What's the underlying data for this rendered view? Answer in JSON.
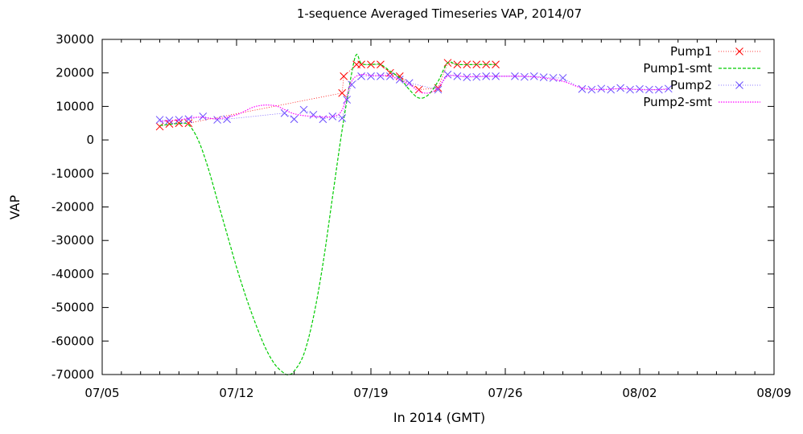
{
  "chart_data": {
    "type": "line",
    "title": "1-sequence Averaged Timeseries VAP, 2014/07",
    "xlabel": "In 2014 (GMT)",
    "ylabel": "VAP",
    "xlim": [
      "07/05",
      "08/09"
    ],
    "ylim": [
      -70000,
      30000
    ],
    "x_ticks": [
      "07/05",
      "07/12",
      "07/19",
      "07/26",
      "08/02",
      "08/09"
    ],
    "y_ticks": [
      "30000",
      "20000",
      "10000",
      "0",
      "-10000",
      "-20000",
      "-30000",
      "-40000",
      "-50000",
      "-60000",
      "-70000"
    ],
    "legend_position": "top-right",
    "grid": false,
    "series": [
      {
        "name": "Pump1",
        "color": "#ff0000",
        "style": "points-line",
        "points": [
          [
            "2014-07-08 00:00",
            4000
          ],
          [
            "2014-07-08 12:00",
            4800
          ],
          [
            "2014-07-09 00:00",
            5000
          ],
          [
            "2014-07-09 12:00",
            5000
          ],
          [
            "2014-07-17 12:00",
            14000
          ],
          [
            "2014-07-17 14:00",
            19000
          ],
          [
            "2014-07-18 06:00",
            22500
          ],
          [
            "2014-07-18 12:00",
            22500
          ],
          [
            "2014-07-19 00:00",
            22500
          ],
          [
            "2014-07-19 12:00",
            22500
          ],
          [
            "2014-07-20 00:00",
            20000
          ],
          [
            "2014-07-20 12:00",
            19000
          ],
          [
            "2014-07-21 12:00",
            15000
          ],
          [
            "2014-07-22 12:00",
            15500
          ],
          [
            "2014-07-23 00:00",
            23000
          ],
          [
            "2014-07-23 12:00",
            22500
          ],
          [
            "2014-07-24 00:00",
            22500
          ],
          [
            "2014-07-24 12:00",
            22500
          ],
          [
            "2014-07-25 00:00",
            22500
          ],
          [
            "2014-07-25 12:00",
            22500
          ]
        ]
      },
      {
        "name": "Pump1-smt",
        "color": "#00cc00",
        "style": "dashed",
        "points": [
          [
            "2014-07-08 00:00",
            4300
          ],
          [
            "2014-07-09 00:00",
            4900
          ],
          [
            "2014-07-09 12:00",
            4500
          ],
          [
            "2014-07-10 00:00",
            0
          ],
          [
            "2014-07-10 12:00",
            -8000
          ],
          [
            "2014-07-11 00:00",
            -18000
          ],
          [
            "2014-07-11 12:00",
            -28000
          ],
          [
            "2014-07-12 00:00",
            -38000
          ],
          [
            "2014-07-12 12:00",
            -47000
          ],
          [
            "2014-07-13 00:00",
            -55000
          ],
          [
            "2014-07-13 12:00",
            -62000
          ],
          [
            "2014-07-14 00:00",
            -67000
          ],
          [
            "2014-07-14 12:00",
            -69700
          ],
          [
            "2014-07-14 18:00",
            -70000
          ],
          [
            "2014-07-15 00:00",
            -69000
          ],
          [
            "2014-07-15 12:00",
            -64000
          ],
          [
            "2014-07-16 00:00",
            -53000
          ],
          [
            "2014-07-16 12:00",
            -37000
          ],
          [
            "2014-07-17 00:00",
            -17000
          ],
          [
            "2014-07-17 12:00",
            3000
          ],
          [
            "2014-07-18 00:00",
            20000
          ],
          [
            "2014-07-18 06:00",
            25500
          ],
          [
            "2014-07-18 12:00",
            22800
          ],
          [
            "2014-07-19 00:00",
            22500
          ],
          [
            "2014-07-19 12:00",
            22500
          ],
          [
            "2014-07-20 00:00",
            20500
          ],
          [
            "2014-07-20 12:00",
            18500
          ],
          [
            "2014-07-21 00:00",
            15000
          ],
          [
            "2014-07-21 12:00",
            12500
          ],
          [
            "2014-07-22 00:00",
            13500
          ],
          [
            "2014-07-22 12:00",
            17500
          ],
          [
            "2014-07-23 00:00",
            23000
          ],
          [
            "2014-07-23 12:00",
            22500
          ],
          [
            "2014-07-24 12:00",
            22500
          ],
          [
            "2014-07-25 12:00",
            22500
          ]
        ]
      },
      {
        "name": "Pump2",
        "color": "#6a4cff",
        "style": "points-line",
        "points": [
          [
            "2014-07-08 00:00",
            6000
          ],
          [
            "2014-07-08 12:00",
            5800
          ],
          [
            "2014-07-09 00:00",
            6000
          ],
          [
            "2014-07-09 12:00",
            6200
          ],
          [
            "2014-07-10 06:00",
            7000
          ],
          [
            "2014-07-11 00:00",
            6000
          ],
          [
            "2014-07-11 12:00",
            6200
          ],
          [
            "2014-07-14 12:00",
            8000
          ],
          [
            "2014-07-15 00:00",
            6200
          ],
          [
            "2014-07-15 12:00",
            9000
          ],
          [
            "2014-07-16 00:00",
            7500
          ],
          [
            "2014-07-16 12:00",
            6200
          ],
          [
            "2014-07-17 00:00",
            7000
          ],
          [
            "2014-07-17 12:00",
            6500
          ],
          [
            "2014-07-17 18:00",
            12000
          ],
          [
            "2014-07-18 00:00",
            16500
          ],
          [
            "2014-07-18 12:00",
            19000
          ],
          [
            "2014-07-19 00:00",
            19000
          ],
          [
            "2014-07-19 12:00",
            19000
          ],
          [
            "2014-07-20 00:00",
            19000
          ],
          [
            "2014-07-20 12:00",
            18000
          ],
          [
            "2014-07-21 00:00",
            17000
          ],
          [
            "2014-07-22 12:00",
            15000
          ],
          [
            "2014-07-23 00:00",
            19500
          ],
          [
            "2014-07-23 12:00",
            19000
          ],
          [
            "2014-07-24 00:00",
            18700
          ],
          [
            "2014-07-24 12:00",
            18800
          ],
          [
            "2014-07-25 00:00",
            19000
          ],
          [
            "2014-07-25 12:00",
            19000
          ],
          [
            "2014-07-26 12:00",
            19000
          ],
          [
            "2014-07-27 00:00",
            18800
          ],
          [
            "2014-07-27 12:00",
            19000
          ],
          [
            "2014-07-28 00:00",
            18700
          ],
          [
            "2014-07-28 12:00",
            18500
          ],
          [
            "2014-07-29 00:00",
            18500
          ],
          [
            "2014-07-30 00:00",
            15200
          ],
          [
            "2014-07-30 12:00",
            15000
          ],
          [
            "2014-07-31 00:00",
            15300
          ],
          [
            "2014-07-31 12:00",
            15000
          ],
          [
            "2014-08-01 00:00",
            15500
          ],
          [
            "2014-08-01 12:00",
            15000
          ],
          [
            "2014-08-02 00:00",
            15200
          ],
          [
            "2014-08-02 12:00",
            15000
          ],
          [
            "2014-08-03 00:00",
            15000
          ],
          [
            "2014-08-03 12:00",
            15300
          ]
        ]
      },
      {
        "name": "Pump2-smt",
        "color": "#ff00ff",
        "style": "dotted",
        "points": [
          [
            "2014-07-08 00:00",
            5500
          ],
          [
            "2014-07-09 00:00",
            6000
          ],
          [
            "2014-07-10 00:00",
            6800
          ],
          [
            "2014-07-11 00:00",
            6300
          ],
          [
            "2014-07-12 00:00",
            7500
          ],
          [
            "2014-07-13 00:00",
            10000
          ],
          [
            "2014-07-14 00:00",
            10200
          ],
          [
            "2014-07-15 00:00",
            7800
          ],
          [
            "2014-07-16 00:00",
            7000
          ],
          [
            "2014-07-17 00:00",
            7000
          ],
          [
            "2014-07-17 12:00",
            9000
          ],
          [
            "2014-07-18 00:00",
            17500
          ],
          [
            "2014-07-18 12:00",
            19500
          ],
          [
            "2014-07-19 00:00",
            19200
          ],
          [
            "2014-07-20 00:00",
            19000
          ],
          [
            "2014-07-21 00:00",
            16500
          ],
          [
            "2014-07-21 12:00",
            14500
          ],
          [
            "2014-07-22 00:00",
            14000
          ],
          [
            "2014-07-22 12:00",
            15500
          ],
          [
            "2014-07-23 00:00",
            19000
          ],
          [
            "2014-07-24 00:00",
            18900
          ],
          [
            "2014-07-25 00:00",
            19000
          ],
          [
            "2014-07-26 00:00",
            19000
          ],
          [
            "2014-07-27 00:00",
            19000
          ],
          [
            "2014-07-28 00:00",
            18500
          ],
          [
            "2014-07-29 00:00",
            17500
          ],
          [
            "2014-07-30 00:00",
            15500
          ],
          [
            "2014-07-31 00:00",
            15000
          ],
          [
            "2014-08-01 00:00",
            15300
          ],
          [
            "2014-08-02 00:00",
            15000
          ],
          [
            "2014-08-03 00:00",
            15000
          ],
          [
            "2014-08-03 12:00",
            15200
          ]
        ]
      }
    ]
  }
}
